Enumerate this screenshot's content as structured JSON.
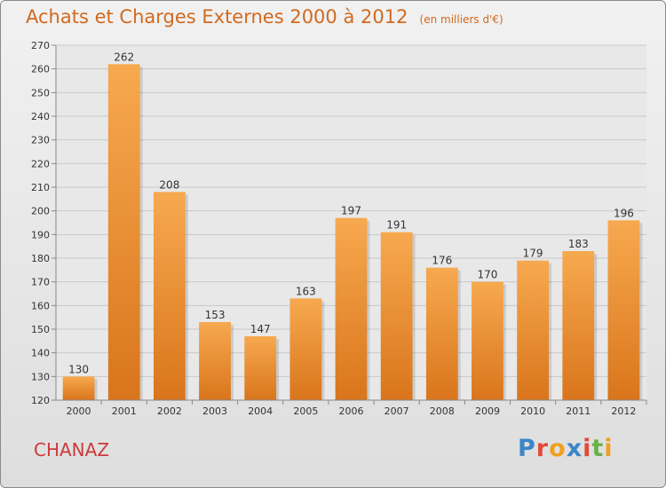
{
  "header": {
    "title": "Achats et Charges Externes 2000 à 2012",
    "unit": "(en milliers d'€)"
  },
  "footer": {
    "commune": "CHANAZ",
    "logo_text": "Proxiti",
    "logo_colors": [
      "#3a86c8",
      "#e04a3a",
      "#f0a020",
      "#3a86c8",
      "#e04a3a",
      "#6ab04c",
      "#f0a020"
    ]
  },
  "chart_data": {
    "type": "bar",
    "categories": [
      "2000",
      "2001",
      "2002",
      "2003",
      "2004",
      "2005",
      "2006",
      "2007",
      "2008",
      "2009",
      "2010",
      "2011",
      "2012"
    ],
    "values": [
      130,
      262,
      208,
      153,
      147,
      163,
      197,
      191,
      176,
      170,
      179,
      183,
      196
    ],
    "title": "Achats et Charges Externes 2000 à 2012",
    "xlabel": "",
    "ylabel": "",
    "ylim": [
      120,
      270
    ],
    "yticks": [
      120,
      130,
      140,
      150,
      160,
      170,
      180,
      190,
      200,
      210,
      220,
      230,
      240,
      250,
      260,
      270
    ],
    "grid": true,
    "colors": {
      "bar_light": "#f7a94f",
      "bar_dark": "#d9751c",
      "grid": "#c8c8c8",
      "label": "#333333"
    }
  }
}
